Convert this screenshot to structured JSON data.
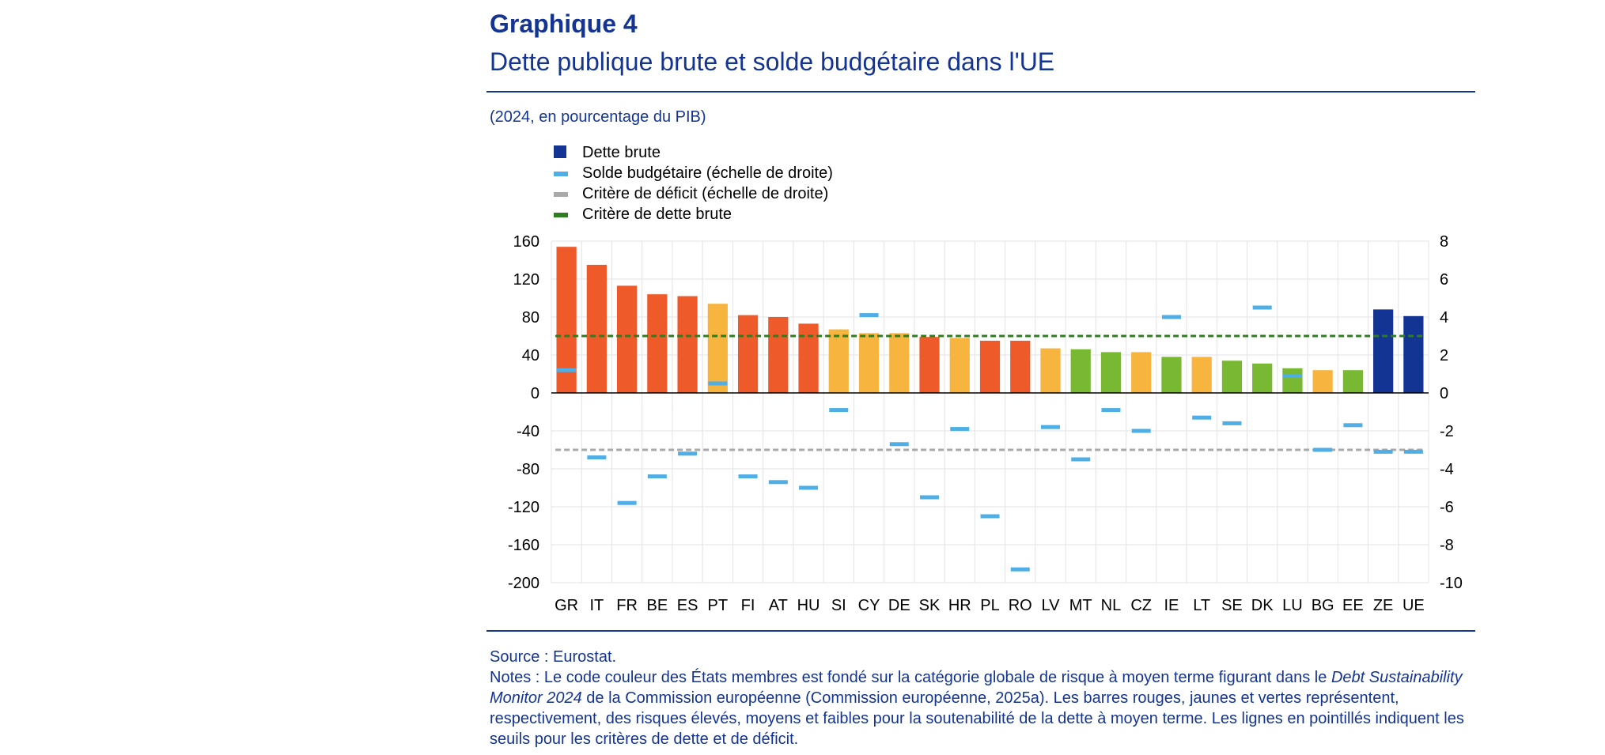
{
  "header": {
    "title": "Graphique 4",
    "subtitle": "Dette publique brute et solde budgétaire dans l'UE",
    "units": "(2024, en pourcentage du PIB)"
  },
  "legend": [
    {
      "label": "Dette brute",
      "color": "#143494",
      "kind": "square"
    },
    {
      "label": "Solde budgétaire (échelle de droite)",
      "color": "#4FAEE6",
      "kind": "line"
    },
    {
      "label": "Critère de déficit (échelle de droite)",
      "color": "#A9A9A9",
      "kind": "line"
    },
    {
      "label": "Critère de dette brute",
      "color": "#2E7D1F",
      "kind": "line"
    }
  ],
  "footer": {
    "source": "Source : Eurostat.",
    "notes_prefix": "Notes : Le code couleur des États membres est fondé sur la catégorie globale de risque à moyen terme figurant dans le ",
    "notes_italic": "Debt Sustainability Monitor 2024",
    "notes_suffix": " de la Commission européenne (Commission européenne, 2025a). Les barres rouges, jaunes et vertes représentent, respectivement, des risques élevés, moyens et faibles pour la soutenabilité de la dette à moyen terme. Les lignes en pointillés indiquent les seuils pour les critères de dette et de déficit."
  },
  "colors": {
    "high_risk": "#EE5A2A",
    "medium_risk": "#F7B53F",
    "low_risk": "#79B833",
    "aggregate": "#143494",
    "balance": "#4FAEE6",
    "deficit_criterion": "#A9A9A9",
    "debt_criterion": "#2E7D1F",
    "text_blue": "#143494"
  },
  "chart_data": {
    "type": "bar",
    "categories": [
      "GR",
      "IT",
      "FR",
      "BE",
      "ES",
      "PT",
      "FI",
      "AT",
      "HU",
      "SI",
      "CY",
      "DE",
      "SK",
      "HR",
      "PL",
      "RO",
      "LV",
      "MT",
      "NL",
      "CZ",
      "IE",
      "LT",
      "SE",
      "DK",
      "LU",
      "BG",
      "EE",
      "ZE",
      "UE"
    ],
    "risk": [
      "high",
      "high",
      "high",
      "high",
      "high",
      "medium",
      "high",
      "high",
      "high",
      "medium",
      "medium",
      "medium",
      "high",
      "medium",
      "high",
      "high",
      "medium",
      "low",
      "low",
      "medium",
      "low",
      "medium",
      "low",
      "low",
      "low",
      "medium",
      "low",
      "aggregate",
      "aggregate"
    ],
    "series": [
      {
        "name": "Dette brute",
        "axis": "left",
        "values": [
          154,
          135,
          113,
          104,
          102,
          94,
          82,
          80,
          73,
          67,
          63,
          63,
          59,
          58,
          55,
          55,
          47,
          46,
          43,
          43,
          38,
          38,
          34,
          31,
          26,
          24,
          24,
          88,
          81
        ]
      },
      {
        "name": "Solde budgétaire (échelle de droite)",
        "axis": "right",
        "values": [
          1.2,
          -3.4,
          -5.8,
          -4.4,
          -3.2,
          0.5,
          -4.4,
          -4.7,
          -5.0,
          -0.9,
          4.1,
          -2.7,
          -5.5,
          -1.9,
          -6.5,
          -9.3,
          -1.8,
          -3.5,
          -0.9,
          -2.0,
          4.0,
          -1.3,
          -1.6,
          4.5,
          0.9,
          -3.0,
          -1.7,
          -3.1,
          -3.1
        ]
      },
      {
        "name": "Critère de déficit (échelle de droite)",
        "axis": "right",
        "constant": -3
      },
      {
        "name": "Critère de dette brute",
        "axis": "left",
        "constant": 60
      }
    ],
    "y_left": {
      "min": -200,
      "max": 160,
      "step": 40,
      "ticks": [
        "160",
        "120",
        "80",
        "40",
        "0",
        "-40",
        "-80",
        "-120",
        "-160",
        "-200"
      ]
    },
    "y_right": {
      "min": -10,
      "max": 8,
      "step": 2,
      "ticks": [
        "8",
        "6",
        "4",
        "2",
        "0",
        "-2",
        "-4",
        "-6",
        "-8",
        "-10"
      ]
    },
    "grid": true,
    "legend_position": "top-left"
  }
}
